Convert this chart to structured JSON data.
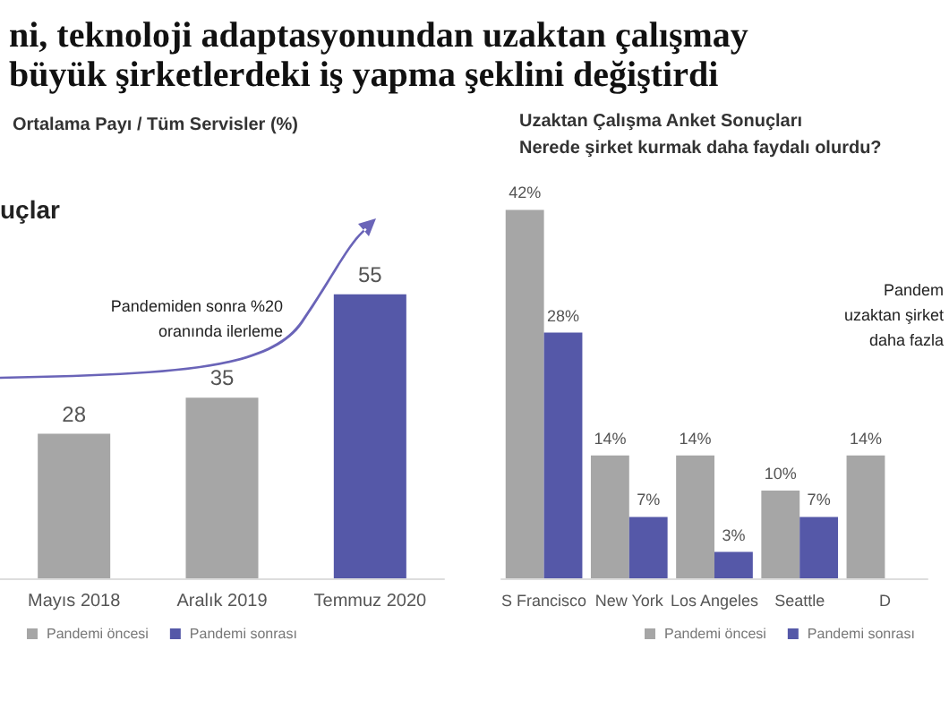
{
  "chart_data": [
    {
      "type": "bar",
      "title": "ni, teknoloji adaptasyonundan uzaktan çalışmay\nbüyük şirketlerdeki iş yapma şeklini değiştirdi",
      "subtitle": "Ortalama Payı / Tüm Servisler (%)",
      "annotations": [
        "uçlar",
        "Pandemiden sonra %20\noranında ilerleme"
      ],
      "categories": [
        "Mayıs 2018",
        "Aralık 2019",
        "Temmuz 2020"
      ],
      "stacked": true,
      "data_labels": true,
      "legend": "bottom",
      "series": [
        {
          "name": "Pandemi öncesi",
          "color": "#a6a6a6",
          "values": [
            28,
            35,
            null
          ]
        },
        {
          "name": "Pandemi sonrası",
          "color": "#5558a8",
          "values": [
            null,
            null,
            55
          ]
        }
      ]
    },
    {
      "type": "bar",
      "title": "Uzaktan Çalışma Anket Sonuçları",
      "subtitle": "Nerede şirket kurmak daha faydalı olurdu?",
      "annotations": [
        "Pandem\nuzaktan şirket\ndaha fazla"
      ],
      "categories": [
        "S Francisco",
        "New York",
        "Los Angeles",
        "Seattle",
        "D"
      ],
      "legend": "bottom",
      "series": [
        {
          "name": "Pandemi öncesi",
          "color": "#a6a6a6",
          "values": [
            42,
            14,
            14,
            10,
            14
          ],
          "value_labels": [
            "42%",
            "14%",
            "14%",
            "10%",
            "14%"
          ]
        },
        {
          "name": "Pandemi sonrası",
          "color": "#5558a8",
          "values": [
            28,
            7,
            3,
            7,
            null
          ],
          "value_labels": [
            "28%",
            "7%",
            "3%",
            "7%",
            null
          ]
        }
      ]
    }
  ]
}
